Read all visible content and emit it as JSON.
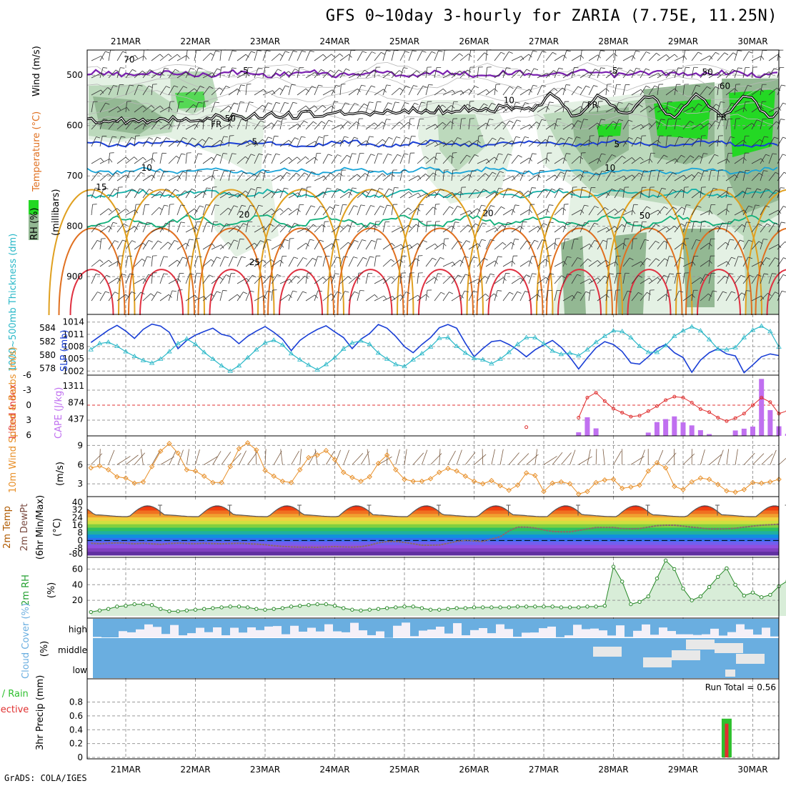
{
  "title": "GFS 0~10day 3-hourly for ZARIA (7.75E, 11.25N)",
  "credit": "GrADS: COLA/IGES",
  "dates": [
    "21MAR",
    "22MAR",
    "23MAR",
    "24MAR",
    "25MAR",
    "26MAR",
    "27MAR",
    "28MAR",
    "29MAR",
    "30MAR"
  ],
  "colors": {
    "purple": "#7a1fb0",
    "black": "#000000",
    "blue": "#1a3fd6",
    "cyan": "#18a4d8",
    "teal": "#13b0a8",
    "green": "#12b07a",
    "orange": "#e0a020",
    "dkorange": "#e07020",
    "red": "#e03040",
    "rhgreen": "#23c030",
    "cape": "#c070f0",
    "li": "#e03030",
    "wind10": "#e8902a",
    "cloud": "#6aaee0",
    "rain": "#2ec02e",
    "conv": "#e03030"
  },
  "chart_data": [
    {
      "type": "contour",
      "title": "Wind, Temperature (°C), RH (%)",
      "ylabel": "(millibars)",
      "yticks": [
        500,
        600,
        700,
        800,
        900
      ],
      "ylim": [
        450,
        975
      ],
      "legend_labels": {
        "wind": "Wind (m/s)",
        "temp": "Temperature (°C)",
        "rh": "RH (%)"
      },
      "contour_labels": [
        {
          "text": "-5",
          "color": "purple",
          "x": 1.7,
          "p": 497
        },
        {
          "text": "-5",
          "color": "purple",
          "x": 7.0,
          "p": 497
        },
        {
          "text": "FR",
          "color": "black",
          "x": 1.3,
          "p": 603
        },
        {
          "text": "FR",
          "color": "black",
          "x": 6.7,
          "p": 565
        },
        {
          "text": "FR",
          "color": "black",
          "x": 8.55,
          "p": 590
        },
        {
          "text": "5",
          "color": "blue",
          "x": 1.85,
          "p": 638
        },
        {
          "text": "5",
          "color": "blue",
          "x": 7.05,
          "p": 643
        },
        {
          "text": "10",
          "color": "cyan",
          "x": 0.3,
          "p": 690
        },
        {
          "text": "10",
          "color": "cyan",
          "x": 6.95,
          "p": 690
        },
        {
          "text": "15",
          "color": "teal",
          "x": -0.35,
          "p": 728
        },
        {
          "text": "20",
          "color": "green",
          "x": 1.7,
          "p": 783
        },
        {
          "text": "20",
          "color": "green",
          "x": 5.2,
          "p": 780
        },
        {
          "text": "25",
          "color": "dkorange",
          "x": 1.85,
          "p": 877
        },
        {
          "text": "70",
          "color": "gray",
          "x": 0.05,
          "p": 475
        },
        {
          "text": "50",
          "color": "gray",
          "x": 1.5,
          "p": 592
        },
        {
          "text": "10",
          "color": "gray",
          "x": 5.5,
          "p": 556
        },
        {
          "text": "50",
          "color": "gray",
          "x": 8.35,
          "p": 500
        },
        {
          "text": "60",
          "color": "gray",
          "x": 8.6,
          "p": 527
        },
        {
          "text": "50",
          "color": "gray",
          "x": 7.45,
          "p": 785
        }
      ]
    },
    {
      "type": "line",
      "title": "1000-500mb Thickness (dm) / SLP (mb)",
      "ylabel_left": "1000~500mb Thickness (dm)",
      "ylabel_right": "SLP (mb)",
      "yticks_left": [
        578,
        580,
        582,
        584
      ],
      "yticks_right": [
        1002,
        1005,
        1008,
        1011,
        1014
      ],
      "ylim_slp": [
        1001,
        1015
      ],
      "x_start": -0.5,
      "x_step": 0.125,
      "series": [
        {
          "name": "SLP",
          "values": [
            1009,
            1010.5,
            1012,
            1013.2,
            1011.8,
            1010,
            1012.2,
            1013.5,
            1013,
            1011.5,
            1007.5,
            1009.5,
            1010.8,
            1011.7,
            1012.5,
            1011,
            1010.5,
            1008.7,
            1010.5,
            1011.8,
            1012.9,
            1011.5,
            1009.8,
            1007,
            1009.5,
            1011,
            1012.2,
            1013.1,
            1011.6,
            1010.2,
            1007.5,
            1009.8,
            1011.2,
            1013.4,
            1012.5,
            1010.5,
            1008,
            1006.5,
            1008.5,
            1010.2,
            1012.6,
            1013.4,
            1012.5,
            1008.8,
            1005.5,
            1007.5,
            1009.2,
            1009.5,
            1008.5,
            1007.2,
            1005.5,
            1007.2,
            1008.4,
            1009.5,
            1007.8,
            1005.4,
            1002.5,
            1005.2,
            1007.7,
            1009.2,
            1008.5,
            1006.8,
            1004,
            1003.7,
            1005.5,
            1007.5,
            1008.5,
            1006.5,
            1005.3,
            1001.7,
            1004.7,
            1006.5,
            1007.5,
            1006.2,
            1005.7,
            1001.6,
            1003.5,
            1005.5,
            1006.2,
            1005.8
          ]
        },
        {
          "name": "Thickness",
          "values": [
            580.8,
            581.7,
            581.9,
            581.3,
            580.5,
            579.8,
            579.2,
            578.8,
            579.4,
            580.5,
            581.7,
            582.4,
            581.6,
            580.4,
            579.4,
            578.4,
            577.6,
            578.4,
            579.6,
            580.8,
            581.8,
            582.2,
            581.5,
            580.2,
            579.3,
            578.5,
            577.8,
            578.6,
            579.6,
            580.9,
            581.8,
            582.1,
            581.6,
            580.3,
            579.4,
            578.6,
            578.3,
            579.3,
            580.2,
            581.2,
            582.5,
            582.6,
            581.3,
            580.3,
            579.5,
            579.3,
            578.7,
            579.4,
            580.4,
            581.6,
            582.6,
            582.6,
            581.7,
            580.6,
            580.1,
            580.3,
            579.9,
            580.8,
            581.9,
            582.8,
            583.6,
            583.5,
            582.6,
            581.3,
            580.4,
            580.4,
            581.4,
            582.8,
            583.6,
            584.2,
            583.6,
            582.3,
            580.9,
            580.8,
            581.1,
            582.6,
            583.7,
            584.3,
            583.5,
            581.2
          ]
        }
      ]
    },
    {
      "type": "bar+line",
      "title": "Lifted Index / CAPE (J/kg)",
      "ylabel_left": "Lifted Index",
      "ylabel_right": "CAPE (J/kg)",
      "yticks_left": [
        -6,
        -3,
        0,
        3,
        6
      ],
      "yticks_right": [
        437,
        874,
        1311
      ],
      "x_start": 5.75,
      "x_step": 0.125,
      "series": [
        {
          "name": "Lifted Index",
          "values": [
            4.4,
            null,
            null,
            null,
            null,
            null,
            2.5,
            -1.5,
            -2.5,
            -0.8,
            0.7,
            1.5,
            2.3,
            2.1,
            1.2,
            0.2,
            -1,
            -1.7,
            -1.5,
            -0.5,
            0.8,
            1.4,
            2.5,
            3.2,
            2.6,
            1.7,
            0,
            -1.5,
            -0.6,
            1.7,
            1.1,
            2.2,
            1.6,
            0.2,
            -0.6,
            0.6,
            -0.2
          ]
        },
        {
          "name": "CAPE",
          "values": [
            0,
            0,
            0,
            0,
            0,
            0,
            120,
            620,
            250,
            0,
            0,
            0,
            0,
            0,
            110,
            460,
            560,
            650,
            450,
            350,
            190,
            60,
            0,
            0,
            180,
            240,
            310,
            1900,
            860,
            320,
            70,
            90,
            180,
            100,
            180,
            180,
            290
          ]
        }
      ]
    },
    {
      "type": "line",
      "title": "10m Wind Speed & Barbs (m/s)",
      "ylabel": "(m/s)",
      "yticks": [
        3,
        6,
        9
      ],
      "ylim": [
        1,
        10.5
      ],
      "x_start": -0.5,
      "x_step": 0.125,
      "series": [
        {
          "name": "10m wind speed",
          "values": [
            5.5,
            5.8,
            5.2,
            4.1,
            3.9,
            3.1,
            3.3,
            5.7,
            8.1,
            9.3,
            7.8,
            5.2,
            5,
            4.2,
            3.2,
            3.2,
            5.7,
            8.5,
            9.4,
            8.3,
            5.1,
            4.2,
            3.4,
            3.2,
            5.2,
            7.1,
            7.5,
            8.2,
            6.8,
            4.8,
            4,
            3.4,
            4.1,
            6.2,
            7.5,
            5.2,
            3.7,
            3.4,
            3.4,
            3.8,
            4.8,
            5.4,
            5,
            4.2,
            3.4,
            3,
            3.5,
            2.7,
            2,
            2.8,
            4.7,
            4.3,
            1.8,
            3.1,
            3.3,
            3,
            1.4,
            1.8,
            3.2,
            3.6,
            3.7,
            2.3,
            2.5,
            2.8,
            5,
            6.3,
            5.5,
            2.6,
            2.1,
            3.3,
            3.9,
            3.7,
            2.9,
            1.9,
            1.7,
            2.1,
            3.2,
            3.1,
            3.3,
            3.7
          ]
        }
      ]
    },
    {
      "type": "area",
      "title": "2m Temp, 2m DewPt (6hr Min/Max) (°C)",
      "ylabel": "(°C)",
      "yticks": [
        -80,
        -8,
        0,
        8,
        16,
        24,
        32,
        40
      ],
      "temp_max": 38.5,
      "temp_min": 22,
      "dewpt_values": [
        -3,
        -3.5,
        -3,
        -2.5,
        -3,
        -3.5,
        -3,
        -3.5,
        -4,
        -3.2,
        -2.8,
        -3.2,
        -3.4,
        -3,
        -3.3,
        -3.6,
        -3.2,
        -3,
        -3.4,
        -3.8,
        -4.5,
        -5.5,
        -6.3,
        -6.8,
        -7,
        -7,
        -7.2,
        -6.8,
        -6.5,
        -6.8,
        -7,
        -6.6,
        -5,
        -2.5,
        -1.2,
        -1,
        -2,
        -3.5,
        -5,
        -5,
        -4.8,
        -3,
        -1,
        0,
        -0.5,
        -1,
        1.5,
        4,
        10,
        14,
        14,
        13,
        11,
        9.5,
        9,
        9,
        10.5,
        12,
        13.5,
        13.5,
        13.5,
        12.5,
        12.2,
        12.5,
        14,
        15.5,
        16,
        16,
        15,
        14,
        13,
        12,
        12,
        12.2,
        12.8,
        14,
        15,
        16,
        16.5,
        17
      ]
    },
    {
      "type": "area",
      "title": "2m RH (%)",
      "ylabel": "(%)",
      "yticks": [
        20,
        40,
        60
      ],
      "ylim": [
        0,
        75
      ],
      "x_start": -0.5,
      "x_step": 0.125,
      "series": [
        {
          "name": "2m RH",
          "values": [
            5,
            7,
            9,
            12,
            13,
            15,
            15,
            14,
            9,
            6,
            6,
            7,
            8,
            9,
            10,
            11,
            12,
            12,
            11,
            9,
            8,
            9,
            10,
            12,
            13,
            14,
            15,
            15,
            13,
            10,
            8,
            7,
            8,
            9,
            10,
            11,
            12,
            12,
            10,
            8,
            8,
            9,
            10,
            10,
            11,
            11,
            11,
            11,
            11,
            12,
            12,
            12,
            12,
            12,
            11,
            11,
            11,
            12,
            12,
            13,
            63,
            44,
            15,
            18,
            25,
            48,
            71,
            60,
            35,
            20,
            25,
            37,
            50,
            61,
            40,
            26,
            30,
            24,
            27,
            38,
            45,
            66
          ]
        }
      ]
    },
    {
      "type": "area",
      "title": "Cloud Cover (%)",
      "ylabel": "(%)",
      "levels": [
        "high",
        "middle",
        "low"
      ]
    },
    {
      "type": "bar",
      "title": "3hr Precip (mm)",
      "ylabel": "3hr Precip (mm)",
      "legend": [
        "Total / Rain",
        "Convective"
      ],
      "yticks": [
        0,
        0.2,
        0.4,
        0.6,
        0.8
      ],
      "ylim": [
        0,
        0.95
      ],
      "run_total": "Run Total = 0.56",
      "bars": [
        {
          "x": 8.625,
          "total": 0.56,
          "convective": 0.55
        }
      ]
    }
  ]
}
